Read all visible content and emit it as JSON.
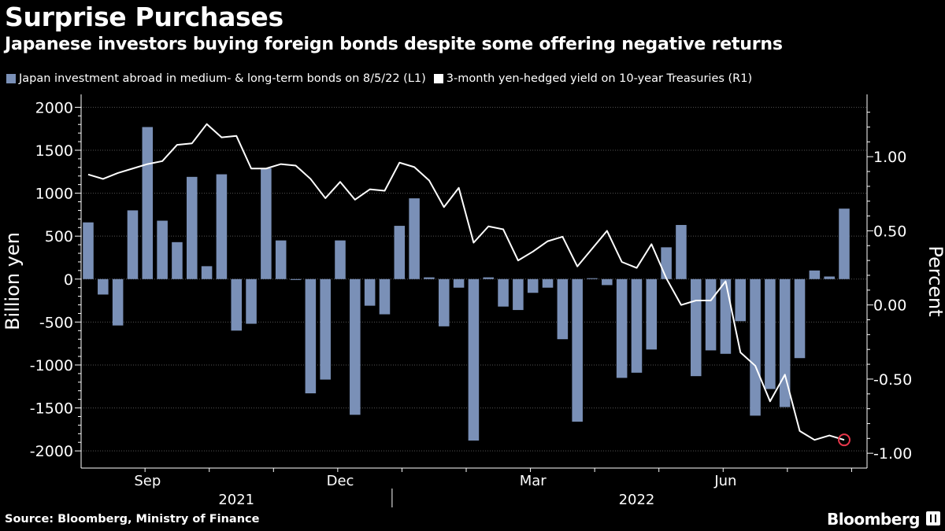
{
  "header": {
    "title": "Surprise Purchases",
    "subtitle": "Japanese investors buying foreign bonds despite some offering negative returns"
  },
  "legend": {
    "bar_label": "Japan investment abroad in medium- & long-term bonds on 8/5/22 (L1)",
    "line_label": "3-month yen-hedged yield on 10-year Treasuries (R1)"
  },
  "footer": {
    "source": "Source: Bloomberg, Ministry of Finance",
    "brand": "Bloomberg"
  },
  "colors": {
    "bar": "#7a90b7",
    "line": "#ffffff",
    "marker": "#e8374b",
    "grid": "#555555"
  },
  "chart_data": {
    "type": "bar+line",
    "left_axis": {
      "label": "Billion yen",
      "ylim": [
        -2200,
        2150
      ],
      "ticks": [
        2000,
        1500,
        1000,
        500,
        0,
        -500,
        -1000,
        -1500,
        -2000
      ],
      "tick_labels": [
        "2000",
        "1500",
        "1000",
        "500",
        "0",
        "-500",
        "-1000",
        "-1500",
        "-2000"
      ]
    },
    "right_axis": {
      "label": "Percent",
      "ylim": [
        -1.1,
        1.42
      ],
      "ticks": [
        1.0,
        0.5,
        0.0,
        -0.5,
        -1.0
      ],
      "tick_labels": [
        "1.00",
        "0.50",
        "0.00",
        "-0.50",
        "-1.00"
      ]
    },
    "x_axis": {
      "month_labels": [
        {
          "label": "Sep",
          "index": 4
        },
        {
          "label": "Dec",
          "index": 17
        },
        {
          "label": "Mar",
          "index": 30
        },
        {
          "label": "Jun",
          "index": 43
        }
      ],
      "year_labels": [
        {
          "label": "2021",
          "center": 10
        },
        {
          "label": "2022",
          "center": 37
        }
      ],
      "year_divider_index": 20.5
    },
    "series": [
      {
        "name": "Japan investment abroad in medium- & long-term bonds on 8/5/22 (L1)",
        "type": "bar",
        "axis": "left",
        "values": [
          660,
          -180,
          -540,
          800,
          1770,
          680,
          430,
          1190,
          150,
          1220,
          -600,
          -520,
          1290,
          450,
          -10,
          -1330,
          -1170,
          450,
          -1580,
          -310,
          -410,
          620,
          940,
          20,
          -550,
          -100,
          -1880,
          20,
          -320,
          -360,
          -160,
          -100,
          -700,
          -1660,
          10,
          -70,
          -1150,
          -1090,
          -820,
          370,
          630,
          -1130,
          -830,
          -870,
          -490,
          -1590,
          -1280,
          -1490,
          -920,
          100,
          30,
          820
        ]
      },
      {
        "name": "3-month yen-hedged yield on 10-year Treasuries (R1)",
        "type": "line",
        "axis": "right",
        "values": [
          0.88,
          0.85,
          0.89,
          0.92,
          0.95,
          0.97,
          1.08,
          1.09,
          1.22,
          1.13,
          1.14,
          0.92,
          0.92,
          0.95,
          0.94,
          0.85,
          0.72,
          0.83,
          0.71,
          0.78,
          0.77,
          0.96,
          0.93,
          0.84,
          0.66,
          0.79,
          0.42,
          0.53,
          0.51,
          0.3,
          0.36,
          0.43,
          0.46,
          0.26,
          0.38,
          0.5,
          0.29,
          0.25,
          0.41,
          0.18,
          0.0,
          0.03,
          0.03,
          0.16,
          -0.32,
          -0.41,
          -0.65,
          -0.47,
          -0.85,
          -0.91,
          -0.88,
          -0.91
        ]
      }
    ],
    "end_marker": "last line point"
  }
}
